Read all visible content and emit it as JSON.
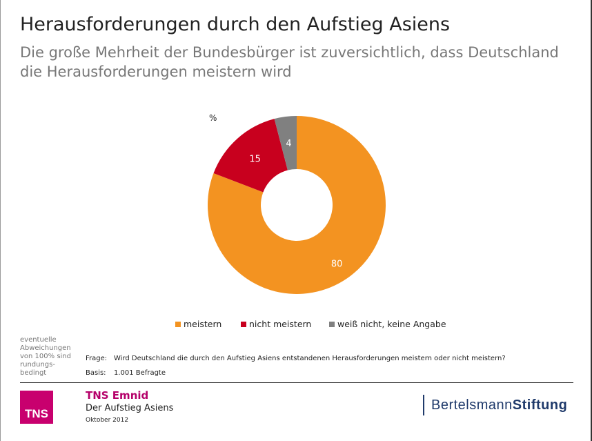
{
  "header": {
    "title": "Herausforderungen durch den Aufstieg Asiens",
    "subtitle": "Die große Mehrheit der Bundesbürger ist zuversichtlich, dass Deutschland die Herausforderungen meistern wird"
  },
  "chart_data": {
    "type": "pie",
    "donut": true,
    "unit": "%",
    "slices": [
      {
        "name": "meistern",
        "value": 80,
        "color": "#f39321"
      },
      {
        "name": "nicht meistern",
        "value": 15,
        "color": "#c8001e"
      },
      {
        "name": "weiß nicht, keine Angabe",
        "value": 4,
        "color": "#808080"
      }
    ],
    "legend_position": "bottom"
  },
  "footnote": {
    "note": "eventuelle Abweichungen von 100% sind rundungs-bedingt",
    "question_label": "Frage:",
    "question": "Wird Deutschland die durch den Aufstieg Asiens entstandenen Herausforderungen meistern oder nicht meistern?",
    "basis_label": "Basis:",
    "basis": "1.001 Befragte"
  },
  "footer": {
    "tns_logo": "TNS",
    "company": "TNS Emnid",
    "project": "Der Aufstieg Asiens",
    "date": "Oktober 2012",
    "partner_a": "Bertelsmann",
    "partner_b": "Stiftung"
  }
}
